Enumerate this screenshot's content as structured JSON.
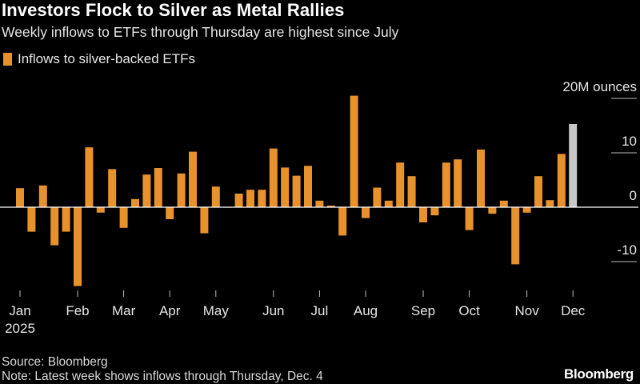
{
  "header": {
    "title": "Investors Flock to Silver as Metal Rallies",
    "subtitle": "Weekly inflows to ETFs through Thursday are highest since July"
  },
  "footer": {
    "source": "Source: Bloomberg",
    "note": "Note: Latest week shows inflows through Thursday, Dec. 4",
    "brand": "Bloomberg"
  },
  "colors": {
    "bar": "#e8922d",
    "latest_bar": "#c8c8c8",
    "background": "#000000",
    "zero_line": "#ffffff"
  },
  "chart_data": {
    "type": "bar",
    "title": "Investors Flock to Silver as Metal Rallies",
    "subtitle": "Weekly inflows to ETFs through Thursday are highest since July",
    "xlabel": "",
    "ylabel": "",
    "ylim": [
      -14,
      20
    ],
    "yticks": [
      {
        "value": 20,
        "label": "20M ounces"
      },
      {
        "value": 10,
        "label": "10"
      },
      {
        "value": 0,
        "label": "0"
      },
      {
        "value": -10,
        "label": "-10"
      }
    ],
    "x_tick_labels": [
      {
        "label": "Jan",
        "week": 0,
        "sublabel": "2025"
      },
      {
        "label": "Feb",
        "week": 5
      },
      {
        "label": "Mar",
        "week": 9
      },
      {
        "label": "Apr",
        "week": 13
      },
      {
        "label": "May",
        "week": 17
      },
      {
        "label": "Jun",
        "week": 22
      },
      {
        "label": "Jul",
        "week": 26
      },
      {
        "label": "Aug",
        "week": 30
      },
      {
        "label": "Sep",
        "week": 35
      },
      {
        "label": "Oct",
        "week": 39
      },
      {
        "label": "Nov",
        "week": 44
      },
      {
        "label": "Dec",
        "week": 48
      }
    ],
    "grid": false,
    "legend_position": "top-left",
    "series": [
      {
        "name": "Inflows to silver-backed ETFs",
        "values": [
          3.5,
          -4.5,
          4,
          -7,
          -4.5,
          -14.5,
          11,
          -1,
          7,
          -3.8,
          1.5,
          6,
          7.2,
          -2.2,
          6.2,
          10.2,
          -4.8,
          3.8,
          0,
          2.5,
          3.2,
          3.2,
          10.8,
          7.3,
          5.8,
          7.6,
          1.2,
          0.3,
          -5.2,
          20.5,
          -2,
          3.6,
          1.2,
          8.2,
          5.7,
          -2.8,
          -1.5,
          8.2,
          8.8,
          -4.2,
          10.6,
          -1.2,
          1.2,
          -10.5,
          -1,
          5.7,
          1.3,
          9.8,
          15.3
        ],
        "latest_partial_index": 48
      }
    ]
  }
}
